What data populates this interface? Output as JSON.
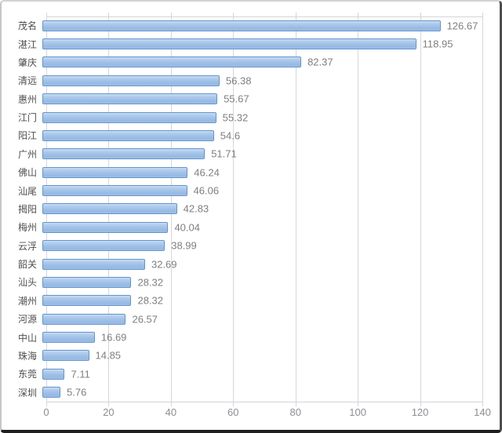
{
  "chart_data": {
    "type": "bar",
    "orientation": "horizontal",
    "title": "",
    "xlabel": "",
    "ylabel": "",
    "categories": [
      "茂名",
      "湛江",
      "肇庆",
      "清远",
      "惠州",
      "江门",
      "阳江",
      "广州",
      "佛山",
      "汕尾",
      "揭阳",
      "梅州",
      "云浮",
      "韶关",
      "汕头",
      "潮州",
      "河源",
      "中山",
      "珠海",
      "东莞",
      "深圳"
    ],
    "values": [
      126.67,
      118.95,
      82.37,
      56.38,
      55.67,
      55.32,
      54.6,
      51.71,
      46.24,
      46.06,
      42.83,
      40.04,
      38.99,
      32.69,
      28.32,
      28.32,
      26.57,
      16.69,
      14.85,
      7.11,
      5.76
    ],
    "value_labels": [
      "126.67",
      "118.95",
      "82.37",
      "56.38",
      "55.67",
      "55.32",
      "54.6",
      "51.71",
      "46.24",
      "46.06",
      "42.83",
      "40.04",
      "38.99",
      "32.69",
      "28.32",
      "28.32",
      "26.57",
      "16.69",
      "14.85",
      "7.11",
      "5.76"
    ],
    "xlim": [
      0,
      140
    ],
    "xticks": [
      0,
      20,
      40,
      60,
      80,
      100,
      120,
      140
    ],
    "xtick_labels": [
      "0",
      "20",
      "40",
      "60",
      "80",
      "100",
      "120",
      "140"
    ],
    "grid": "vertical-only",
    "legend": "none",
    "colors": {
      "bar_fill": "#9fc0e7",
      "bar_fill_highlight": "#c8dcf3",
      "bar_border": "#6494cd",
      "gridline": "#d7d7d7",
      "axis_border": "#d4d4d4",
      "category_label": "#4f4f4f",
      "value_label": "#7f7f7f",
      "tick_label": "#8b8e94",
      "background": "#ffffff"
    }
  }
}
